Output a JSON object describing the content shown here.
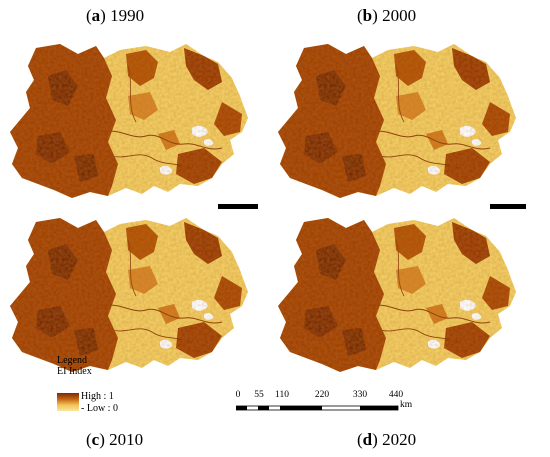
{
  "panels": [
    {
      "letter": "a",
      "year": "1990"
    },
    {
      "letter": "b",
      "year": "2000"
    },
    {
      "letter": "c",
      "year": "2010"
    },
    {
      "letter": "d",
      "year": "2020"
    }
  ],
  "legend": {
    "title": "Legend",
    "subtitle": "EI Index",
    "high": "High : 1",
    "low": "Low : 0",
    "colors": {
      "high": "#7a2a08",
      "mid": "#c4620f",
      "low": "#fbe79c"
    }
  },
  "scale": {
    "ticks": [
      "0",
      "55",
      "110",
      "220",
      "330",
      "440"
    ],
    "unit": "km"
  }
}
